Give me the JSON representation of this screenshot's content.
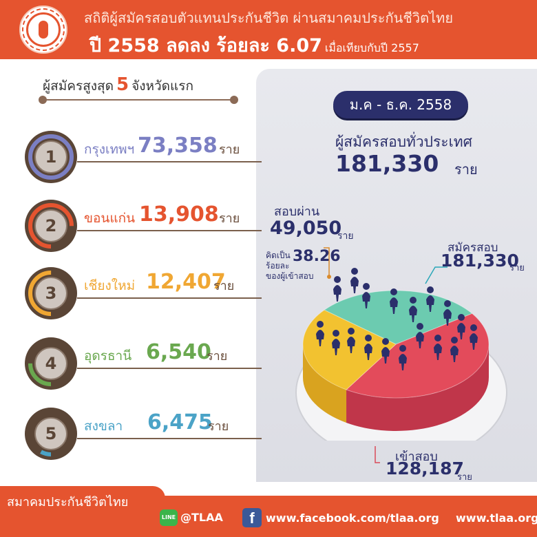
{
  "header": {
    "title_line1": "สถิติผู้สมัครสอบตัวแทนประกันชีวิต ผ่านสมาคมประกันชีวิตไทย",
    "title_line2_main": "ปี 2558 ลดลง ร้อยละ 6.07",
    "title_line2_suffix": "เมื่อเทียบกับปี 2557"
  },
  "top5": {
    "title_pre": "ผู้สมัครสูงสุด",
    "title_num": "5",
    "title_post": "จังหวัดแรก",
    "unit": "ราย",
    "provinces": [
      {
        "rank": "1",
        "name": "กรุงเทพฯ",
        "value": "73,358",
        "color": "#7b7fc3",
        "ring_fraction": 1.0
      },
      {
        "rank": "2",
        "name": "ขอนแก่น",
        "value": "13,908",
        "color": "#e5542f",
        "ring_fraction": 0.75
      },
      {
        "rank": "3",
        "name": "เชียงใหม่",
        "value": "12,407",
        "color": "#f0a733",
        "ring_fraction": 0.5
      },
      {
        "rank": "4",
        "name": "อุดรธานี",
        "value": "6,540",
        "color": "#6aa84f",
        "ring_fraction": 0.25
      },
      {
        "rank": "5",
        "name": "สงขลา",
        "value": "6,475",
        "color": "#4ba3c7",
        "ring_fraction": 0.08
      }
    ]
  },
  "period": "ม.ค - ธ.ค. 2558",
  "nationwide": {
    "label": "ผู้สมัครสอบทั่วประเทศ",
    "value": "181,330",
    "unit": "ราย"
  },
  "pie_labels": {
    "passed_label": "สอบผ่าน",
    "passed_value": "49,050",
    "passed_unit": "ราย",
    "passed_pct_pre1": "คิดเป็น",
    "passed_pct_pre2": "ร้อยละ",
    "passed_pct": "38.26",
    "passed_pct_post": "ของผู้เข้าสอบ",
    "applied_label": "สมัครสอบ",
    "applied_value": "181,330",
    "applied_unit": "ราย",
    "took_label": "เข้าสอบ",
    "took_value": "128,187",
    "took_unit": "ราย"
  },
  "chart_data": [
    {
      "type": "bar",
      "title": "ผู้สมัครสูงสุด 5 จังหวัดแรก",
      "categories": [
        "กรุงเทพฯ",
        "ขอนแก่น",
        "เชียงใหม่",
        "อุดรธานี",
        "สงขลา"
      ],
      "values": [
        73358,
        13908,
        12407,
        6540,
        6475
      ],
      "unit": "ราย"
    },
    {
      "type": "pie",
      "title": "ม.ค - ธ.ค. 2558",
      "total": 181330,
      "slices": [
        {
          "name": "สอบผ่าน",
          "value": 49050,
          "color": "#f2c230"
        },
        {
          "name": "เข้าสอบ",
          "value": 128187,
          "color": "#e34b5b"
        },
        {
          "name": "สมัครสอบ",
          "value": 181330,
          "color": "#6ccbb0"
        }
      ],
      "pass_rate_pct": 38.26
    }
  ],
  "footer": {
    "org": "สมาคมประกันชีวิตไทย",
    "line_icon_text": "LINE",
    "line_id": "@TLAA",
    "fb_icon_text": "f",
    "fb_url": "www.facebook.com/tlaa.org",
    "web_url": "www.tlaa.org"
  }
}
